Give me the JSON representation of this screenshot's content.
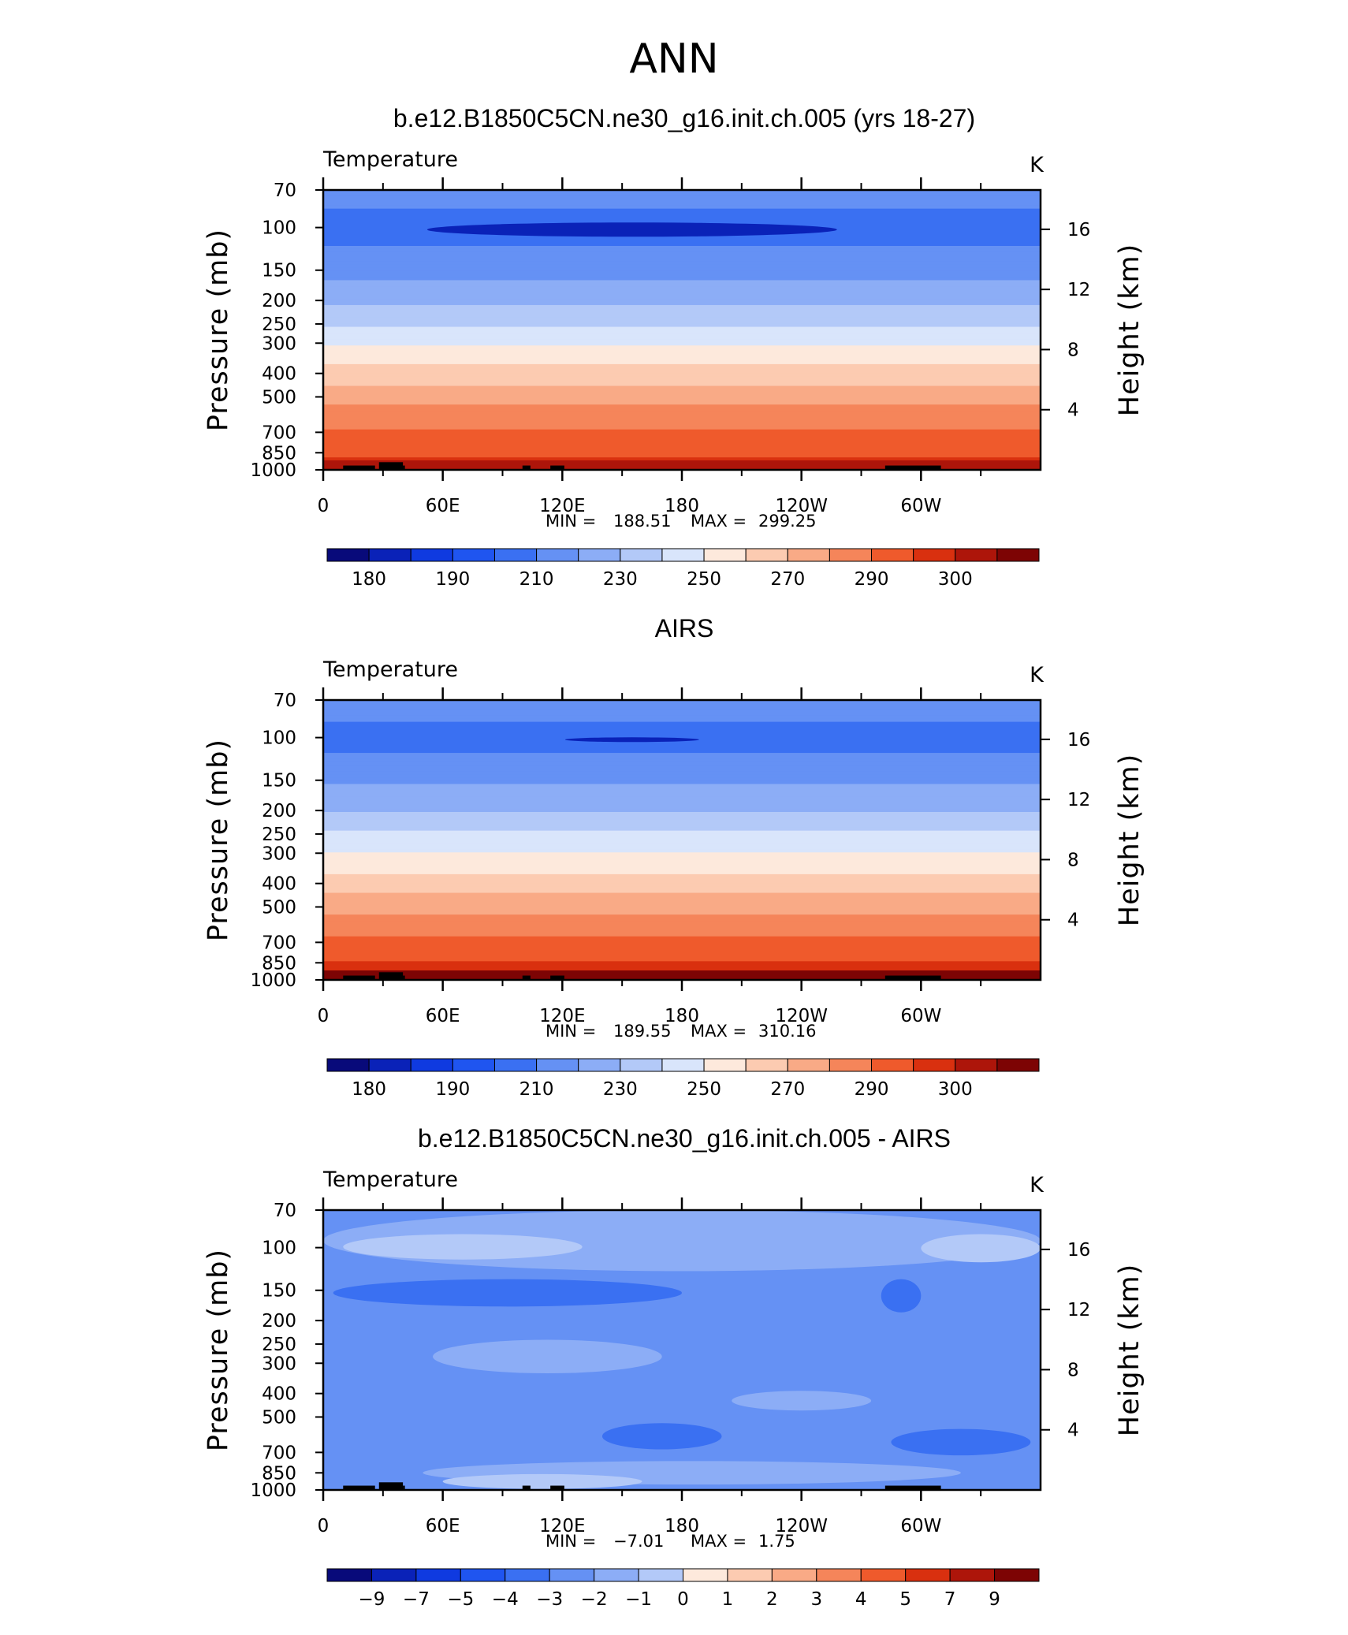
{
  "title": "ANN",
  "chart_data": [
    {
      "type": "heatmap",
      "panel_title": "b.e12.B1850C5CN.ne30_g16.init.ch.005 (yrs 18-27)",
      "variable": "Temperature",
      "units": "K",
      "ylabel": "Pressure (mb)",
      "y2label": "Height (km)",
      "xticks": [
        "0",
        "60E",
        "120E",
        "180",
        "120W",
        "60W"
      ],
      "xtick_lons": [
        0,
        60,
        120,
        180,
        240,
        300
      ],
      "xlim": [
        0,
        360
      ],
      "yticks": [
        70,
        100,
        150,
        200,
        250,
        300,
        400,
        500,
        700,
        850,
        1000
      ],
      "ylim": [
        70,
        1000
      ],
      "y_scale": "log",
      "y2ticks": [
        4,
        8,
        12,
        16
      ],
      "min_label": "MIN =",
      "min_value": "188.51",
      "max_label": "MAX =",
      "max_value": "299.25",
      "colorbar_levels": [
        "180",
        "190",
        "210",
        "230",
        "250",
        "270",
        "290",
        "300"
      ],
      "level_values": [
        175,
        180,
        185,
        190,
        200,
        210,
        220,
        230,
        240,
        250,
        260,
        270,
        280,
        290,
        295,
        300
      ],
      "profile_pressure": [
        70,
        100,
        150,
        200,
        250,
        300,
        400,
        500,
        700,
        850,
        1000
      ],
      "profile_temp": [
        205,
        195,
        206,
        218,
        229,
        239,
        254,
        266,
        282,
        288,
        296
      ]
    },
    {
      "type": "heatmap",
      "panel_title": "AIRS",
      "variable": "Temperature",
      "units": "K",
      "ylabel": "Pressure (mb)",
      "y2label": "Height (km)",
      "xticks": [
        "0",
        "60E",
        "120E",
        "180",
        "120W",
        "60W"
      ],
      "xtick_lons": [
        0,
        60,
        120,
        180,
        240,
        300
      ],
      "xlim": [
        0,
        360
      ],
      "yticks": [
        70,
        100,
        150,
        200,
        250,
        300,
        400,
        500,
        700,
        850,
        1000
      ],
      "ylim": [
        70,
        1000
      ],
      "y_scale": "log",
      "y2ticks": [
        4,
        8,
        12,
        16
      ],
      "min_label": "MIN =",
      "min_value": "189.55",
      "max_label": "MAX =",
      "max_value": "310.16",
      "colorbar_levels": [
        "180",
        "190",
        "210",
        "230",
        "250",
        "270",
        "290",
        "300"
      ],
      "level_values": [
        175,
        180,
        185,
        190,
        200,
        210,
        220,
        230,
        240,
        250,
        260,
        270,
        280,
        290,
        295,
        300
      ],
      "profile_pressure": [
        70,
        100,
        150,
        200,
        250,
        300,
        400,
        500,
        700,
        850,
        1000
      ],
      "profile_temp": [
        205,
        196,
        208,
        220,
        231,
        241,
        255,
        267,
        283,
        291,
        301
      ]
    },
    {
      "type": "heatmap",
      "panel_title": "b.e12.B1850C5CN.ne30_g16.init.ch.005 - AIRS",
      "variable": "Temperature",
      "units": "K",
      "ylabel": "Pressure (mb)",
      "y2label": "Height (km)",
      "xticks": [
        "0",
        "60E",
        "120E",
        "180",
        "120W",
        "60W"
      ],
      "xtick_lons": [
        0,
        60,
        120,
        180,
        240,
        300
      ],
      "xlim": [
        0,
        360
      ],
      "yticks": [
        70,
        100,
        150,
        200,
        250,
        300,
        400,
        500,
        700,
        850,
        1000
      ],
      "ylim": [
        70,
        1000
      ],
      "y_scale": "log",
      "y2ticks": [
        4,
        8,
        12,
        16
      ],
      "min_label": "MIN =",
      "min_value": "−7.01",
      "max_label": "MAX =",
      "max_value": "1.75",
      "colorbar_levels": [
        "−9",
        "−7",
        "−5",
        "−4",
        "−3",
        "−2",
        "−1",
        "0",
        "1",
        "2",
        "3",
        "4",
        "5",
        "7",
        "9"
      ],
      "level_values": [
        -9,
        -7,
        -5,
        -4,
        -3,
        -2,
        -1,
        0,
        1,
        2,
        3,
        4,
        5,
        7,
        9
      ],
      "background_value": -2.5
    }
  ],
  "colormap": [
    "#080a7a",
    "#0a22b8",
    "#0f3ae0",
    "#1f55f0",
    "#3a70f2",
    "#6591f4",
    "#8cadf6",
    "#b3c9f8",
    "#d9e5fb",
    "#fde9dc",
    "#fccbb1",
    "#f9aa86",
    "#f5855a",
    "#ef5a2c",
    "#d9300f",
    "#ad150a",
    "#7d0404"
  ]
}
